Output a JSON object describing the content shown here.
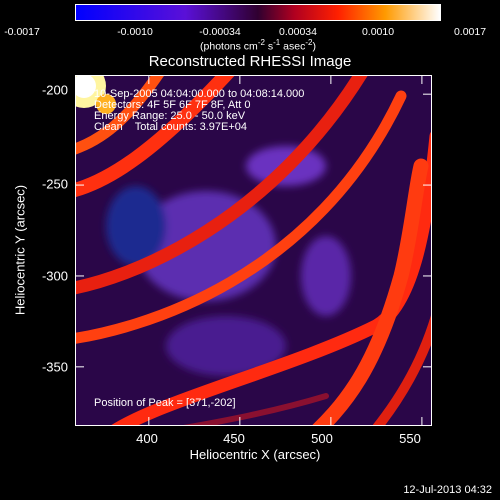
{
  "chart_data": {
    "type": "heatmap",
    "title": "Reconstructed RHESSI Image",
    "xlabel": "Heliocentric X (arcsec)",
    "ylabel": "Heliocentric Y (arcsec)",
    "xlim": [
      360,
      555
    ],
    "ylim": [
      -382,
      -190
    ],
    "x_ticks": [
      400,
      450,
      500,
      550
    ],
    "y_ticks": [
      -200,
      -250,
      -300,
      -350
    ],
    "colorbar": {
      "ticks": [
        "-0.0017",
        "-0.0010",
        "-0.00034",
        "0.00034",
        "0.0010",
        "0.0017"
      ],
      "range": [
        -0.0017,
        0.0017
      ],
      "units_label": "(photons cm",
      "units_sup1": "-2",
      "units_mid1": " s",
      "units_sup2": "-1",
      "units_mid2": " asec",
      "units_sup3": "-2",
      "units_end": ")"
    },
    "info_lines": [
      "10-Sep-2005 04:04:00.000 to 04:08:14.000",
      "Detectors: 4F 5F 6F 7F 8F, Att 0",
      "Energy Range: 25.0 - 50.0 keV",
      "Clean    Total counts: 3.97E+04"
    ],
    "peak_label": "Position of Peak = [371,-202]",
    "peak": [
      371,
      -202
    ]
  },
  "timestamp": "12-Jul-2013 04:32"
}
